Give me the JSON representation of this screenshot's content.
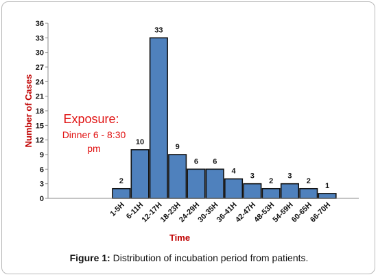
{
  "chart_data": {
    "type": "bar",
    "xlabel": "Time",
    "ylabel": "Number of Cases",
    "categories": [
      "1-5H",
      "6-11H",
      "12-17H",
      "18-23H",
      "24-29H",
      "30-35H",
      "36-41H",
      "42-47H",
      "48-53H",
      "54-59H",
      "60-65H",
      "66-70H"
    ],
    "values": [
      2,
      10,
      33,
      9,
      6,
      6,
      4,
      3,
      2,
      3,
      2,
      1
    ],
    "ylim": [
      0,
      36
    ],
    "yticks": [
      0,
      3,
      6,
      9,
      12,
      15,
      18,
      21,
      24,
      27,
      30,
      33,
      36
    ],
    "grid": false,
    "bar_color": "#4f81bd",
    "annotation": {
      "title": "Exposure:",
      "line1": "Dinner 6 - 8:30",
      "line2": "pm"
    }
  },
  "caption": {
    "label": "Figure 1:",
    "text": " Distribution of incubation period from patients."
  }
}
